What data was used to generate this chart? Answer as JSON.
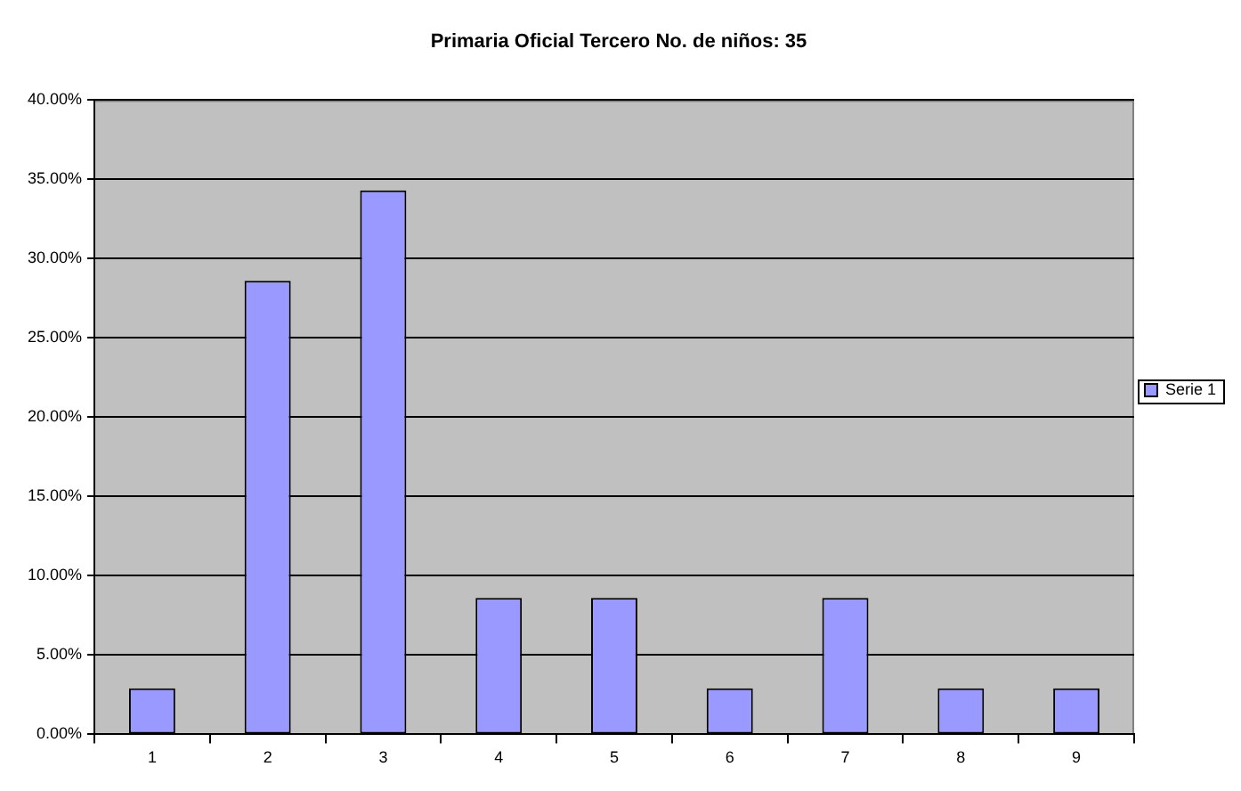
{
  "chart_data": {
    "type": "bar",
    "title": "Primaria Oficial Tercero No. de niños: 35",
    "categories": [
      "1",
      "2",
      "3",
      "4",
      "5",
      "6",
      "7",
      "8",
      "9"
    ],
    "series": [
      {
        "name": "Serie 1",
        "color": "#9999ff",
        "values": [
          2.9,
          28.6,
          34.3,
          8.6,
          8.6,
          2.9,
          8.6,
          2.9,
          2.9
        ]
      }
    ],
    "ylim": [
      0,
      40
    ],
    "yticks": [
      {
        "value": 0,
        "label": "0.00%"
      },
      {
        "value": 5,
        "label": "5.00%"
      },
      {
        "value": 10,
        "label": "10.00%"
      },
      {
        "value": 15,
        "label": "15.00%"
      },
      {
        "value": 20,
        "label": "20.00%"
      },
      {
        "value": 25,
        "label": "25.00%"
      },
      {
        "value": 30,
        "label": "30.00%"
      },
      {
        "value": 35,
        "label": "35.00%"
      },
      {
        "value": 40,
        "label": "40.00%"
      }
    ],
    "grid": "y",
    "legend": "right"
  }
}
